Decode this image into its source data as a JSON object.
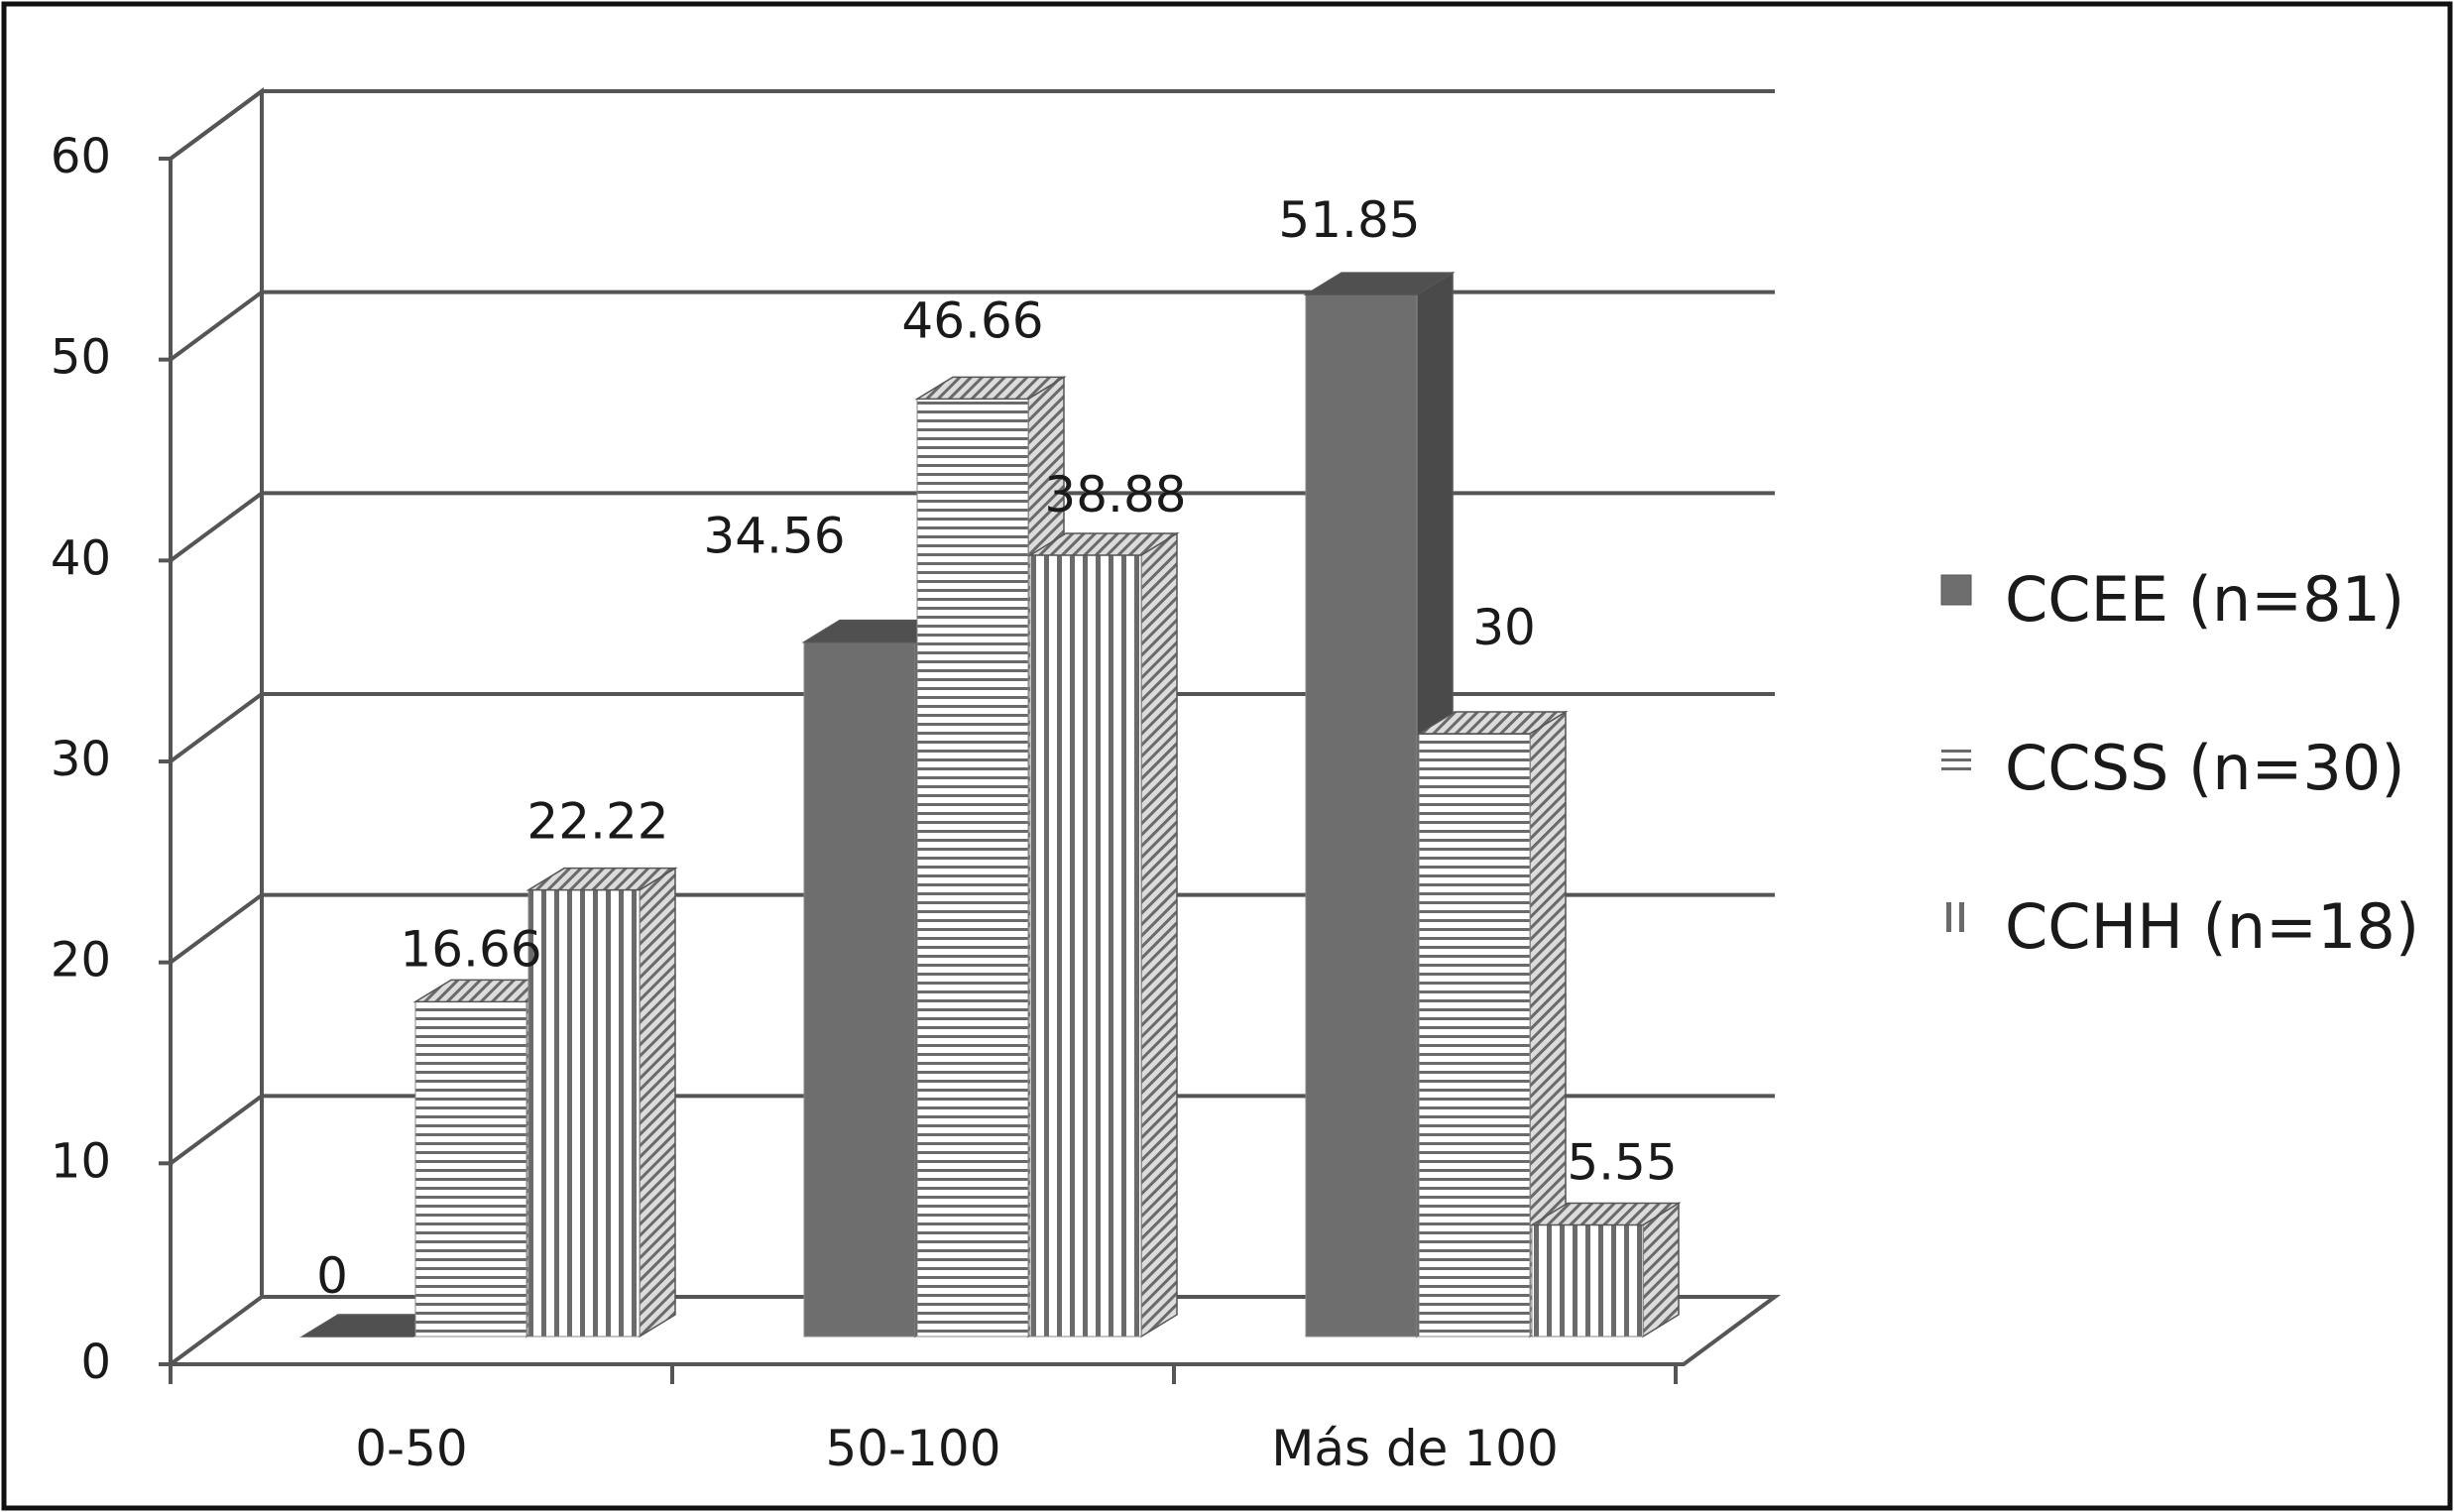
{
  "chart_data": {
    "type": "bar",
    "title": "",
    "xlabel": "",
    "ylabel": "",
    "categories": [
      "0-50",
      "50-100",
      "Más de 100"
    ],
    "series": [
      {
        "name": "CCEE (n=81)",
        "values": [
          0,
          34.56,
          51.85
        ],
        "value_labels": [
          "0",
          "34.56",
          "51.85"
        ],
        "pattern": "solid"
      },
      {
        "name": "CCSS (n=30)",
        "values": [
          16.66,
          46.66,
          30
        ],
        "value_labels": [
          "16.66",
          "46.66",
          "30"
        ],
        "pattern": "horizontal-lines"
      },
      {
        "name": "CCHH (n=18)",
        "values": [
          22.22,
          38.88,
          5.55
        ],
        "value_labels": [
          "22.22",
          "38.88",
          "5.55"
        ],
        "pattern": "vertical-lines"
      }
    ],
    "ylim": [
      0,
      60
    ],
    "yticks": [
      0,
      10,
      20,
      30,
      40,
      50,
      60
    ],
    "ytick_labels": [
      "0",
      "10",
      "20",
      "30",
      "40",
      "50",
      "60"
    ],
    "grid": true,
    "style_3d": true,
    "legend_position": "right",
    "colors": {
      "solid_front": "#6e6e6e",
      "solid_top": "#505050",
      "solid_side": "#4a4a4a",
      "line": "#555555",
      "grid": "#555555",
      "text": "#1a1a1a"
    }
  }
}
